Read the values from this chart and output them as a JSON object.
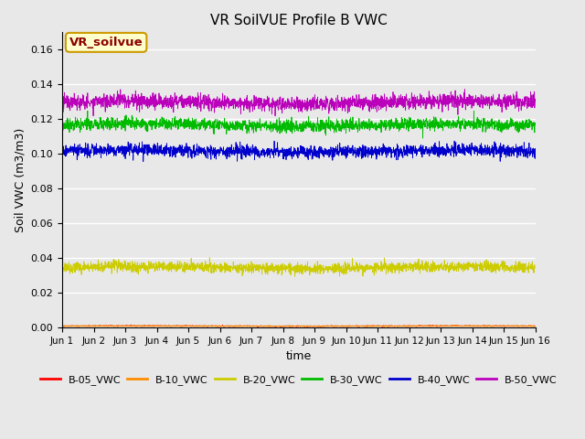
{
  "title": "VR SoilVUE Profile B VWC",
  "xlabel": "time",
  "ylabel": "Soil VWC (m3/m3)",
  "annotation_text": "VR_soilvue",
  "annotation_color": "#8B0000",
  "annotation_bg": "#FFFFCC",
  "annotation_border": "#CC9900",
  "ylim": [
    0.0,
    0.17
  ],
  "yticks": [
    0.0,
    0.02,
    0.04,
    0.06,
    0.08,
    0.1,
    0.12,
    0.14,
    0.16
  ],
  "n_points": 2160,
  "series_order": [
    "B-05_VWC",
    "B-10_VWC",
    "B-20_VWC",
    "B-30_VWC",
    "B-40_VWC",
    "B-50_VWC"
  ],
  "series": {
    "B-05_VWC": {
      "color": "#FF0000",
      "mean": 0.0008,
      "std": 0.00015
    },
    "B-10_VWC": {
      "color": "#FF8C00",
      "mean": 0.0008,
      "std": 0.00015
    },
    "B-20_VWC": {
      "color": "#CCCC00",
      "mean": 0.0345,
      "std": 0.0015
    },
    "B-30_VWC": {
      "color": "#00BB00",
      "mean": 0.1165,
      "std": 0.0018
    },
    "B-40_VWC": {
      "color": "#0000CC",
      "mean": 0.1015,
      "std": 0.0018
    },
    "B-50_VWC": {
      "color": "#BB00BB",
      "mean": 0.1295,
      "std": 0.0022
    }
  },
  "x_tick_labels": [
    "Jun 1",
    "Jun 2",
    "Jun 3",
    "Jun 4",
    "Jun 5",
    "Jun 6",
    "Jun 7",
    "Jun 8",
    "Jun 9",
    "Jun 10",
    "Jun 11",
    "Jun 12",
    "Jun 13",
    "Jun 14",
    "Jun 15",
    "Jun 16"
  ],
  "background_color": "#E8E8E8",
  "fig_background": "#E8E8E8",
  "grid_color": "#FFFFFF",
  "linewidth": 0.6
}
